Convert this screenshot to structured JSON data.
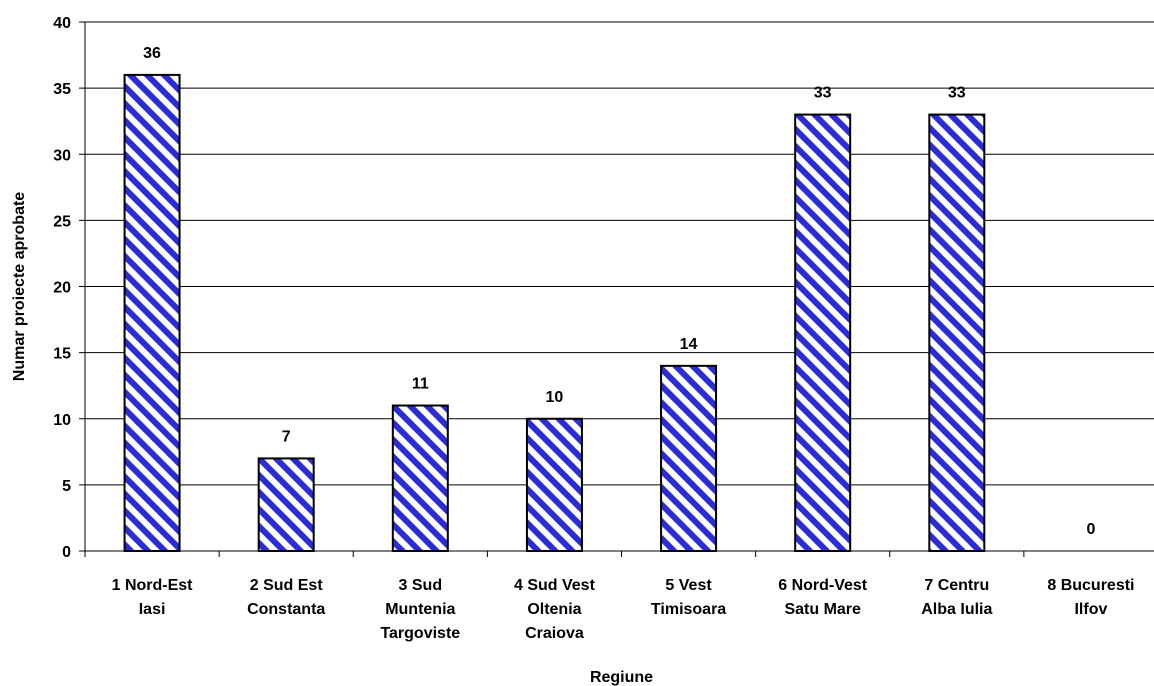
{
  "chart_data": {
    "type": "bar",
    "title": "",
    "xlabel": "Regiune",
    "ylabel": "Numar proiecte aprobate",
    "ylim": [
      0,
      40
    ],
    "yticks": [
      0,
      5,
      10,
      15,
      20,
      25,
      30,
      35,
      40
    ],
    "grid": true,
    "legend": "none",
    "categories": [
      [
        "1 Nord-Est",
        "Iasi"
      ],
      [
        "2 Sud Est",
        "Constanta"
      ],
      [
        "3 Sud",
        "Muntenia",
        "Targoviste"
      ],
      [
        "4 Sud Vest",
        "Oltenia",
        "Craiova"
      ],
      [
        "5 Vest",
        "Timisoara"
      ],
      [
        "6 Nord-Vest",
        "Satu Mare"
      ],
      [
        "7 Centru",
        "Alba Iulia"
      ],
      [
        "8 Bucuresti",
        "Ilfov"
      ]
    ],
    "values": [
      36,
      7,
      11,
      10,
      14,
      33,
      33,
      0
    ],
    "data_labels": [
      "36",
      "7",
      "11",
      "10",
      "14",
      "33",
      "33",
      "0"
    ],
    "colors": {
      "stripe": "#2c2cd6",
      "background": "#ffffff",
      "outline": "#000000",
      "grid": "#000000"
    }
  }
}
